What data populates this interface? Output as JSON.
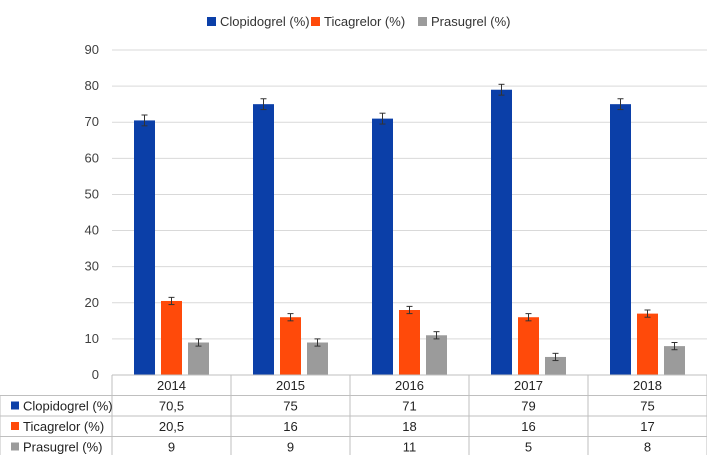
{
  "chart_data": {
    "type": "bar",
    "title": "",
    "xlabel": "",
    "ylabel": "",
    "categories": [
      "2014",
      "2015",
      "2016",
      "2017",
      "2018"
    ],
    "series": [
      {
        "name": "Clopidogrel (%)",
        "color": "#0B3FA8",
        "values": [
          70.5,
          75,
          71,
          79,
          75
        ],
        "labels": [
          "70,5",
          "75",
          "71",
          "79",
          "75"
        ],
        "error": [
          1.5,
          1.5,
          1.5,
          1.5,
          1.5
        ]
      },
      {
        "name": "Ticagrelor (%)",
        "color": "#FF4A0A",
        "values": [
          20.5,
          16,
          18,
          16,
          17
        ],
        "labels": [
          "20,5",
          "16",
          "18",
          "16",
          "17"
        ],
        "error": [
          1,
          1,
          1,
          1,
          1
        ]
      },
      {
        "name": "Prasugrel (%)",
        "color": "#9B9B9B",
        "values": [
          9,
          9,
          11,
          5,
          8
        ],
        "labels": [
          "9",
          "9",
          "11",
          "5",
          "8"
        ],
        "error": [
          1,
          1,
          1,
          1,
          1
        ]
      }
    ],
    "ylim": [
      0,
      90
    ],
    "yticks": [
      0,
      10,
      20,
      30,
      40,
      50,
      60,
      70,
      80,
      90
    ],
    "grid": true,
    "legend": "top",
    "data_table": true
  }
}
